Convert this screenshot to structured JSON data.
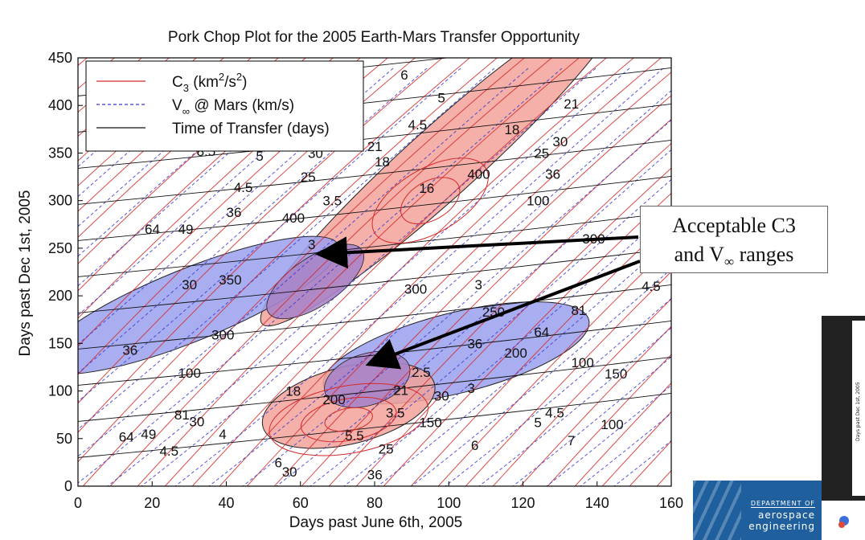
{
  "chart_data": {
    "type": "contour",
    "title": "Pork Chop Plot for the 2005 Earth-Mars Transfer Opportunity",
    "xlabel": "Days past June 6th, 2005",
    "ylabel": "Days past Dec 1st, 2005",
    "xlim": [
      0,
      160
    ],
    "ylim": [
      0,
      450
    ],
    "xticks": [
      "0",
      "20",
      "40",
      "60",
      "80",
      "100",
      "120",
      "140",
      "160"
    ],
    "yticks": [
      "0",
      "50",
      "100",
      "150",
      "200",
      "250",
      "300",
      "350",
      "400",
      "450"
    ],
    "legend": {
      "placement": "top-left",
      "entries": [
        {
          "label_main": "C",
          "label_sub": "3",
          "label_rest": " (km",
          "label_sup": "2",
          "label_rest2": "/s",
          "label_sup2": "2",
          "label_end": ")",
          "color": "#d42a2a",
          "style": "solid"
        },
        {
          "label_main": "V",
          "label_sub": "∞",
          "label_rest": " @ Mars (km/s)",
          "color": "#3a3acc",
          "style": "dashed"
        },
        {
          "label_main": "Time of Transfer (days)",
          "color": "#111111",
          "style": "solid"
        }
      ]
    },
    "contour_labels": [
      {
        "text": "6",
        "x": 87,
        "y": 427,
        "color": "#111"
      },
      {
        "text": "5",
        "x": 97,
        "y": 403,
        "color": "#111"
      },
      {
        "text": "4.5",
        "x": 89,
        "y": 375,
        "color": "#111"
      },
      {
        "text": "21",
        "x": 131,
        "y": 397,
        "color": "#111"
      },
      {
        "text": "18",
        "x": 115,
        "y": 370,
        "color": "#111"
      },
      {
        "text": "21",
        "x": 78,
        "y": 352,
        "color": "#111"
      },
      {
        "text": "18",
        "x": 80,
        "y": 336,
        "color": "#111"
      },
      {
        "text": "30",
        "x": 128,
        "y": 357,
        "color": "#111"
      },
      {
        "text": "25",
        "x": 123,
        "y": 345,
        "color": "#111"
      },
      {
        "text": "400",
        "x": 105,
        "y": 323,
        "color": "#111"
      },
      {
        "text": "36",
        "x": 126,
        "y": 323,
        "color": "#111"
      },
      {
        "text": "16",
        "x": 92,
        "y": 308,
        "color": "#111"
      },
      {
        "text": "100",
        "x": 121,
        "y": 295,
        "color": "#111"
      },
      {
        "text": "8.5",
        "x": 32,
        "y": 347,
        "color": "#111"
      },
      {
        "text": "5",
        "x": 48,
        "y": 342,
        "color": "#111"
      },
      {
        "text": "30",
        "x": 62,
        "y": 345,
        "color": "#111"
      },
      {
        "text": "25",
        "x": 60,
        "y": 320,
        "color": "#111"
      },
      {
        "text": "4.5",
        "x": 42,
        "y": 309,
        "color": "#111"
      },
      {
        "text": "3.5",
        "x": 66,
        "y": 295,
        "color": "#111"
      },
      {
        "text": "36",
        "x": 40,
        "y": 283,
        "color": "#111"
      },
      {
        "text": "400",
        "x": 55,
        "y": 277,
        "color": "#111"
      },
      {
        "text": "64",
        "x": 18,
        "y": 265,
        "color": "#111"
      },
      {
        "text": "49",
        "x": 27,
        "y": 265,
        "color": "#111"
      },
      {
        "text": "3",
        "x": 62,
        "y": 249,
        "color": "#111"
      },
      {
        "text": "350",
        "x": 38,
        "y": 212,
        "color": "#111"
      },
      {
        "text": "30",
        "x": 28,
        "y": 207,
        "color": "#111"
      },
      {
        "text": "300",
        "x": 36,
        "y": 154,
        "color": "#111"
      },
      {
        "text": "36",
        "x": 12,
        "y": 138,
        "color": "#111"
      },
      {
        "text": "300",
        "x": 88,
        "y": 202,
        "color": "#111"
      },
      {
        "text": "250",
        "x": 109,
        "y": 178,
        "color": "#111"
      },
      {
        "text": "3",
        "x": 107,
        "y": 207,
        "color": "#111"
      },
      {
        "text": "36",
        "x": 105,
        "y": 145,
        "color": "#111"
      },
      {
        "text": "200",
        "x": 115,
        "y": 135,
        "color": "#111"
      },
      {
        "text": "64",
        "x": 123,
        "y": 157,
        "color": "#111"
      },
      {
        "text": "81",
        "x": 133,
        "y": 180,
        "color": "#111"
      },
      {
        "text": "300",
        "x": 136,
        "y": 255,
        "color": "#111"
      },
      {
        "text": "4.5",
        "x": 152,
        "y": 205,
        "color": "#111"
      },
      {
        "text": "2.5",
        "x": 90,
        "y": 115,
        "color": "#111"
      },
      {
        "text": "3",
        "x": 105,
        "y": 98,
        "color": "#111"
      },
      {
        "text": "21",
        "x": 85,
        "y": 96,
        "color": "#111"
      },
      {
        "text": "30",
        "x": 96,
        "y": 90,
        "color": "#111"
      },
      {
        "text": "100",
        "x": 133,
        "y": 125,
        "color": "#111"
      },
      {
        "text": "150",
        "x": 142,
        "y": 113,
        "color": "#111"
      },
      {
        "text": "100",
        "x": 141,
        "y": 60,
        "color": "#111"
      },
      {
        "text": "4.5",
        "x": 126,
        "y": 72,
        "color": "#111"
      },
      {
        "text": "5",
        "x": 123,
        "y": 62,
        "color": "#111"
      },
      {
        "text": "7",
        "x": 132,
        "y": 43,
        "color": "#111"
      },
      {
        "text": "6",
        "x": 106,
        "y": 38,
        "color": "#111"
      },
      {
        "text": "3.5",
        "x": 83,
        "y": 72,
        "color": "#111"
      },
      {
        "text": "150",
        "x": 92,
        "y": 62,
        "color": "#111"
      },
      {
        "text": "200",
        "x": 66,
        "y": 86,
        "color": "#111"
      },
      {
        "text": "18",
        "x": 56,
        "y": 95,
        "color": "#111"
      },
      {
        "text": "4",
        "x": 38,
        "y": 50,
        "color": "#111"
      },
      {
        "text": "4.5",
        "x": 22,
        "y": 32,
        "color": "#111"
      },
      {
        "text": "5.5",
        "x": 72,
        "y": 48,
        "color": "#111"
      },
      {
        "text": "25",
        "x": 81,
        "y": 34,
        "color": "#111"
      },
      {
        "text": "6",
        "x": 53,
        "y": 20,
        "color": "#111"
      },
      {
        "text": "30",
        "x": 55,
        "y": 10,
        "color": "#111"
      },
      {
        "text": "36",
        "x": 78,
        "y": 7,
        "color": "#111"
      },
      {
        "text": "100",
        "x": 27,
        "y": 114,
        "color": "#111"
      },
      {
        "text": "81",
        "x": 26,
        "y": 70,
        "color": "#111"
      },
      {
        "text": "30",
        "x": 30,
        "y": 63,
        "color": "#111"
      },
      {
        "text": "49",
        "x": 17,
        "y": 50,
        "color": "#111"
      },
      {
        "text": "64",
        "x": 11,
        "y": 47,
        "color": "#111"
      }
    ],
    "regions": [
      {
        "name": "upper acceptable C3",
        "color": "#f2a29a"
      },
      {
        "name": "upper acceptable V∞",
        "color": "#9aa0ee"
      },
      {
        "name": "lower acceptable V∞",
        "color": "#9aa0ee"
      },
      {
        "name": "lower acceptable C3",
        "color": "#f2a29a"
      }
    ],
    "annotation": {
      "line1": "Acceptable C3",
      "line2_main": "and V",
      "line2_sub": "∞",
      "line2_rest": " ranges"
    }
  },
  "branding": {
    "dept": "DEPARTMENT OF",
    "line1": "aerospace",
    "line2": "engineering"
  },
  "thumbnail_ylabel": "Days past Dec 1st, 2005"
}
